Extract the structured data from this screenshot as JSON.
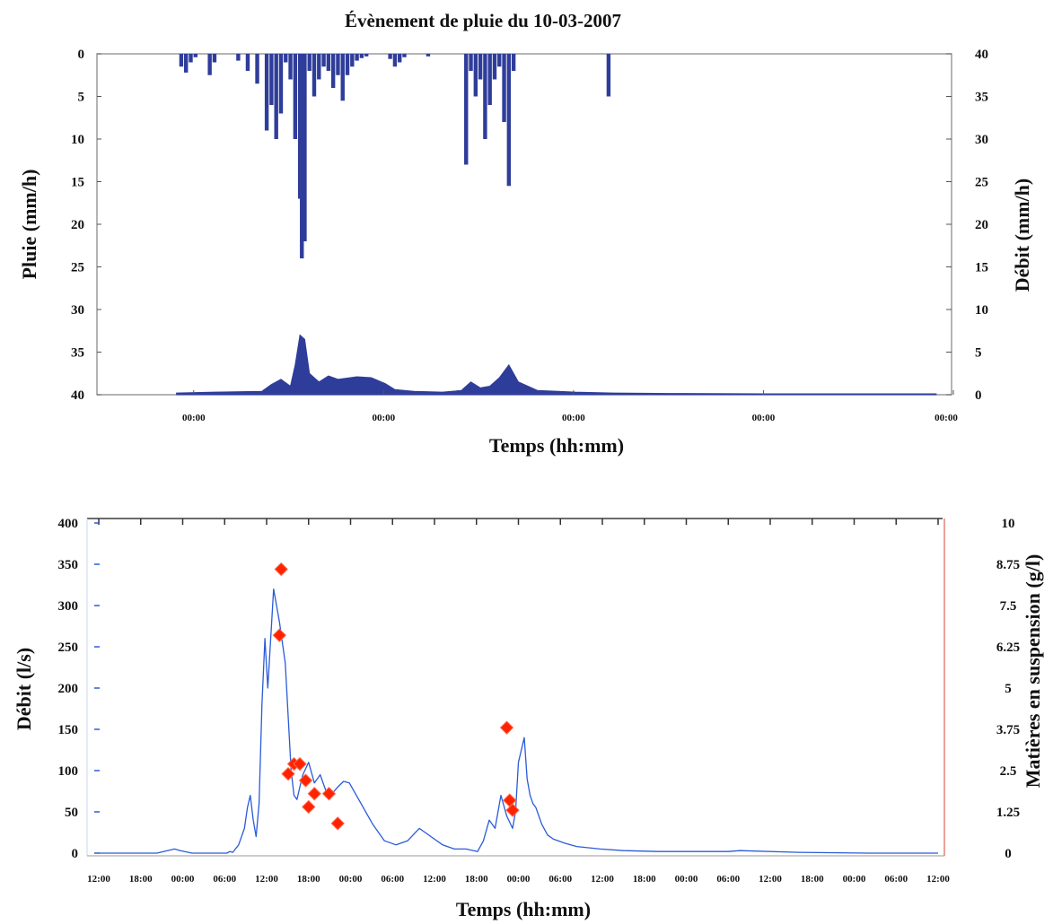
{
  "chart_data": [
    {
      "type": "area",
      "title": "Évènement de pluie du 10-03-2007",
      "xlabel": "Temps (hh:mm)",
      "ylabel_left": "Pluie (mm/h)",
      "ylabel_right": "Débit (mm/h)",
      "y_left_range": [
        0,
        40
      ],
      "y_left_inverted": true,
      "y_right_range": [
        0,
        40
      ],
      "y_left_ticks": [
        "0",
        "5",
        "10",
        "15",
        "20",
        "25",
        "30",
        "35",
        "40"
      ],
      "y_right_ticks": [
        "40",
        "35",
        "30",
        "25",
        "20",
        "15",
        "10",
        "5",
        "0"
      ],
      "x_range": [
        0,
        90
      ],
      "x_ticks": [
        {
          "x": 10,
          "label": "00:00"
        },
        {
          "x": 30,
          "label": "00:00"
        },
        {
          "x": 50,
          "label": "00:00"
        },
        {
          "x": 70,
          "label": "00:00"
        },
        {
          "x": 90,
          "label": "00:00"
        }
      ],
      "grid": false,
      "series": [
        {
          "role": "rain",
          "axis": "left",
          "color": "#2f3d9a",
          "x": [
            8.5,
            9.0,
            9.5,
            10.0,
            11.5,
            12.0,
            14.5,
            15.5,
            16.5,
            17.5,
            18.0,
            18.5,
            19.0,
            19.5,
            20.0,
            20.5,
            21.0,
            21.2,
            21.5,
            22.0,
            22.5,
            23.0,
            23.5,
            24.0,
            24.5,
            25.0,
            25.5,
            26.0,
            26.5,
            27.0,
            27.5,
            28.0,
            30.5,
            31.0,
            31.5,
            32.0,
            34.5,
            38.5,
            39.0,
            39.5,
            40.0,
            40.5,
            41.0,
            41.5,
            42.0,
            42.5,
            43.0,
            43.5,
            53.5
          ],
          "values": [
            1.5,
            2.2,
            1.0,
            0.4,
            2.5,
            1.0,
            0.8,
            2.0,
            3.5,
            9.0,
            6.0,
            10.0,
            7.0,
            1.0,
            3.0,
            10.0,
            17.0,
            24.0,
            22.0,
            2.0,
            5.0,
            3.0,
            1.5,
            2.0,
            4.0,
            2.5,
            5.5,
            2.5,
            1.5,
            0.8,
            0.5,
            0.3,
            0.6,
            1.5,
            1.0,
            0.4,
            0.3,
            13.0,
            2.0,
            5.0,
            3.0,
            10.0,
            6.0,
            3.0,
            1.5,
            8.0,
            15.5,
            2.0,
            5.0
          ]
        },
        {
          "role": "discharge",
          "axis": "right",
          "color": "#2f3d9a",
          "x": [
            8,
            12,
            17,
            18,
            19,
            20,
            20.5,
            21,
            21.5,
            22,
            23,
            24,
            25,
            27,
            28.5,
            30,
            31,
            33,
            36,
            38,
            39,
            40,
            41,
            42,
            43,
            44,
            46,
            50,
            54,
            60,
            70,
            80,
            88
          ],
          "values": [
            0.2,
            0.3,
            0.4,
            1.2,
            1.8,
            1.0,
            3.5,
            7.0,
            6.5,
            2.5,
            1.5,
            2.2,
            1.8,
            2.1,
            2.0,
            1.3,
            0.6,
            0.4,
            0.3,
            0.5,
            1.5,
            0.8,
            1.0,
            2.0,
            3.5,
            1.5,
            0.5,
            0.3,
            0.2,
            0.15,
            0.1,
            0.1,
            0.1
          ]
        }
      ]
    },
    {
      "type": "line",
      "xlabel": "Temps (hh:mm)",
      "ylabel_left": "Débit (l/s)",
      "ylabel_right": "Matières en suspension (g/l)",
      "y_left_range": [
        0,
        400
      ],
      "y_right_range": [
        0,
        10
      ],
      "y_left_ticks": [
        "0",
        "50",
        "100",
        "150",
        "200",
        "250",
        "300",
        "350",
        "400"
      ],
      "y_right_ticks": [
        "0",
        "1.25",
        "2.5",
        "3.75",
        "5",
        "6.25",
        "7.5",
        "8.75",
        "10"
      ],
      "x_unit": "hours",
      "x_range": [
        0,
        144
      ],
      "x_ticks": [
        "12:00",
        "18:00",
        "00:00",
        "06:00",
        "12:00",
        "18:00",
        "00:00",
        "06:00",
        "12:00",
        "18:00",
        "00:00",
        "06:00",
        "12:00",
        "18:00",
        "00:00",
        "06:00",
        "12:00",
        "18:00",
        "00:00",
        "06:00",
        "12:00"
      ],
      "grid": false,
      "series": [
        {
          "name": "",
          "axis": "left",
          "color": "#2a5bd7",
          "x": [
            0,
            10,
            13,
            14,
            16,
            19,
            22,
            22.5,
            23,
            24,
            25,
            25.5,
            26,
            26.5,
            27,
            27.5,
            28,
            28.5,
            29,
            30,
            31,
            32,
            33,
            33.5,
            34,
            34.5,
            35,
            36,
            37,
            38,
            39,
            40,
            41,
            42,
            43,
            45,
            47,
            49,
            51,
            53,
            55,
            57,
            59,
            61,
            63,
            65,
            66,
            67,
            68,
            69,
            70,
            71,
            71.5,
            72,
            73,
            73.5,
            74,
            74.5,
            75,
            76,
            77,
            78,
            80,
            82,
            86,
            90,
            96,
            102,
            108,
            110,
            120,
            132,
            144
          ],
          "values": [
            0,
            0,
            5,
            3,
            0,
            0,
            0,
            2,
            1,
            10,
            30,
            55,
            70,
            40,
            20,
            60,
            180,
            260,
            200,
            320,
            280,
            230,
            100,
            70,
            65,
            80,
            95,
            110,
            85,
            95,
            75,
            72,
            80,
            87,
            85,
            60,
            35,
            15,
            10,
            15,
            30,
            20,
            10,
            5,
            5,
            2,
            15,
            40,
            30,
            70,
            45,
            30,
            50,
            110,
            140,
            90,
            70,
            60,
            55,
            35,
            22,
            17,
            12,
            8,
            5,
            3,
            2,
            2,
            2,
            3,
            1,
            0,
            0
          ]
        },
        {
          "name": "",
          "axis": "right",
          "color": "#ff2200",
          "marker": "diamond",
          "x": [
            31.3,
            31.0,
            32.5,
            33.5,
            34.5,
            35.5,
            36,
            37,
            39.5,
            41,
            70,
            70.5,
            71
          ],
          "values": [
            8.6,
            6.6,
            2.4,
            2.7,
            2.7,
            2.2,
            1.4,
            1.8,
            1.8,
            0.9,
            3.8,
            1.6,
            1.3
          ]
        }
      ]
    }
  ]
}
